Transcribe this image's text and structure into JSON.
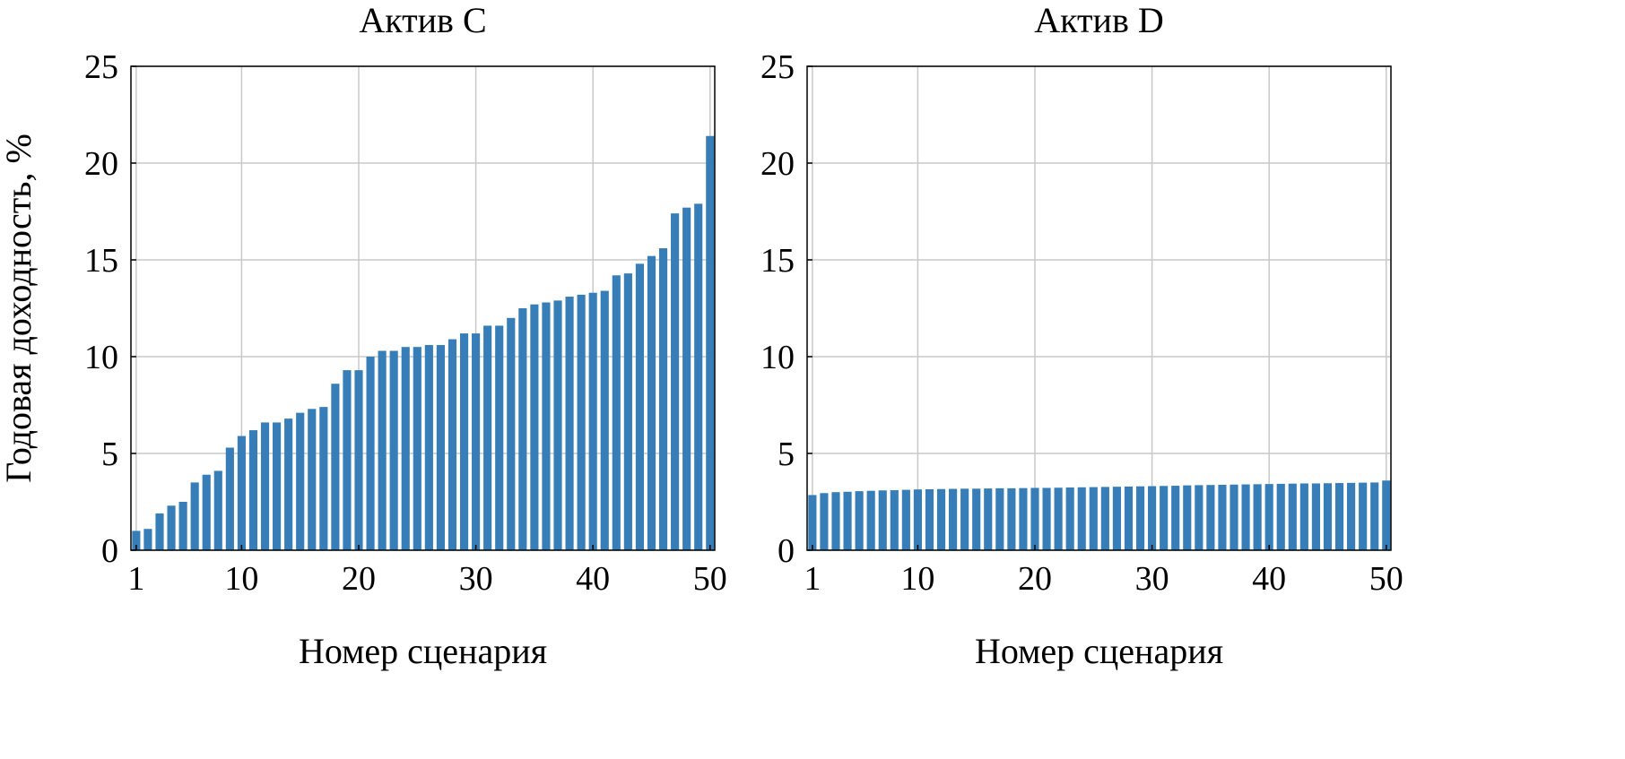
{
  "chart_data": [
    {
      "type": "bar",
      "title": "Актив C",
      "xlabel": "Номер сценария",
      "ylabel": "Годовая доходность, %",
      "xlim": [
        0.55,
        50.4
      ],
      "ylim": [
        0,
        25
      ],
      "xticks": [
        1,
        10,
        20,
        30,
        40,
        50
      ],
      "yticks": [
        0,
        5,
        10,
        15,
        20,
        25
      ],
      "grid": true,
      "color": "#377eb8",
      "x": [
        1,
        2,
        3,
        4,
        5,
        6,
        7,
        8,
        9,
        10,
        11,
        12,
        13,
        14,
        15,
        16,
        17,
        18,
        19,
        20,
        21,
        22,
        23,
        24,
        25,
        26,
        27,
        28,
        29,
        30,
        31,
        32,
        33,
        34,
        35,
        36,
        37,
        38,
        39,
        40,
        41,
        42,
        43,
        44,
        45,
        46,
        47,
        48,
        49,
        50
      ],
      "values": [
        1.0,
        1.1,
        1.9,
        2.3,
        2.5,
        3.5,
        3.9,
        4.1,
        5.3,
        5.9,
        6.2,
        6.6,
        6.6,
        6.8,
        7.1,
        7.3,
        7.4,
        8.6,
        9.3,
        9.3,
        10.0,
        10.3,
        10.3,
        10.5,
        10.5,
        10.6,
        10.6,
        10.9,
        11.2,
        11.2,
        11.6,
        11.6,
        12.0,
        12.5,
        12.7,
        12.8,
        12.9,
        13.1,
        13.2,
        13.3,
        13.4,
        14.2,
        14.3,
        14.8,
        15.2,
        15.6,
        17.4,
        17.7,
        17.9,
        21.4
      ]
    },
    {
      "type": "bar",
      "title": "Актив D",
      "xlabel": "Номер сценария",
      "ylabel": "",
      "xlim": [
        0.55,
        50.4
      ],
      "ylim": [
        0,
        25
      ],
      "xticks": [
        1,
        10,
        20,
        30,
        40,
        50
      ],
      "yticks": [
        0,
        5,
        10,
        15,
        20,
        25
      ],
      "grid": true,
      "color": "#377eb8",
      "x": [
        1,
        2,
        3,
        4,
        5,
        6,
        7,
        8,
        9,
        10,
        11,
        12,
        13,
        14,
        15,
        16,
        17,
        18,
        19,
        20,
        21,
        22,
        23,
        24,
        25,
        26,
        27,
        28,
        29,
        30,
        31,
        32,
        33,
        34,
        35,
        36,
        37,
        38,
        39,
        40,
        41,
        42,
        43,
        44,
        45,
        46,
        47,
        48,
        49,
        50
      ],
      "values": [
        2.85,
        2.95,
        3.0,
        3.02,
        3.05,
        3.07,
        3.09,
        3.1,
        3.12,
        3.14,
        3.15,
        3.16,
        3.17,
        3.18,
        3.18,
        3.19,
        3.2,
        3.2,
        3.21,
        3.22,
        3.22,
        3.23,
        3.24,
        3.25,
        3.26,
        3.27,
        3.28,
        3.29,
        3.3,
        3.31,
        3.32,
        3.33,
        3.35,
        3.36,
        3.37,
        3.38,
        3.39,
        3.4,
        3.41,
        3.42,
        3.43,
        3.44,
        3.45,
        3.45,
        3.46,
        3.47,
        3.48,
        3.49,
        3.5,
        3.6
      ]
    }
  ]
}
